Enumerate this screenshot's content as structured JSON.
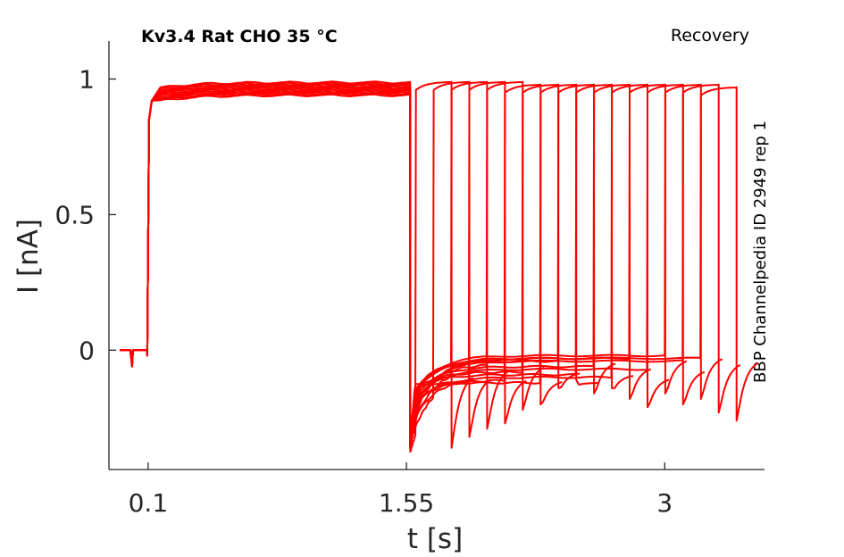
{
  "chart_data": {
    "type": "line",
    "title": "Kv3.4  Rat  CHO  35 °C",
    "protocol_label": "Recovery",
    "side_label": "BBP Channelpedia ID 2949 rep 1",
    "xlabel": "t [s]",
    "ylabel": "I [nA]",
    "xlim": [
      -0.12,
      3.56
    ],
    "ylim": [
      -0.44,
      1.14
    ],
    "x_ticks": [
      {
        "value": 0.1,
        "label": "0.1"
      },
      {
        "value": 1.55,
        "label": "1.55"
      },
      {
        "value": 3,
        "label": "3"
      }
    ],
    "y_ticks": [
      {
        "value": 0,
        "label": "0"
      },
      {
        "value": 0.5,
        "label": "0.5"
      },
      {
        "value": 1,
        "label": "1"
      }
    ],
    "grid": false,
    "color": "#ff0000",
    "prepulse": {
      "start": 0.1,
      "end": 1.58,
      "tail_start": -0.3,
      "peak_range": [
        0.94,
        0.99
      ],
      "baseline_start": -0.06
    },
    "sweeps": [
      {
        "test_pulse_time": 1.6,
        "trough": -0.38,
        "plateau": -0.08,
        "end_value": 0.99
      },
      {
        "test_pulse_time": 1.7,
        "trough": -0.34,
        "plateau": -0.09,
        "end_value": 0.99
      },
      {
        "test_pulse_time": 1.8,
        "trough": -0.31,
        "plateau": -0.06,
        "end_value": 0.99
      },
      {
        "test_pulse_time": 1.9,
        "trough": -0.29,
        "plateau": -0.1,
        "end_value": 0.99
      },
      {
        "test_pulse_time": 2.0,
        "trough": -0.24,
        "plateau": -0.05,
        "end_value": 0.99
      },
      {
        "test_pulse_time": 2.1,
        "trough": -0.22,
        "plateau": -0.11,
        "end_value": 0.98
      },
      {
        "test_pulse_time": 2.2,
        "trough": -0.16,
        "plateau": -0.08,
        "end_value": 0.98
      },
      {
        "test_pulse_time": 2.3,
        "trough": -0.13,
        "plateau": -0.12,
        "end_value": 0.98
      },
      {
        "test_pulse_time": 2.4,
        "trough": -0.18,
        "plateau": -0.04,
        "end_value": 0.98
      },
      {
        "test_pulse_time": 2.5,
        "trough": -0.16,
        "plateau": -0.09,
        "end_value": 0.98
      },
      {
        "test_pulse_time": 2.6,
        "trough": -0.2,
        "plateau": -0.06,
        "end_value": 0.98
      },
      {
        "test_pulse_time": 2.7,
        "trough": -0.23,
        "plateau": -0.1,
        "end_value": 0.98
      },
      {
        "test_pulse_time": 2.8,
        "trough": -0.18,
        "plateau": -0.03,
        "end_value": 0.98
      },
      {
        "test_pulse_time": 2.9,
        "trough": -0.22,
        "plateau": -0.07,
        "end_value": 0.98
      },
      {
        "test_pulse_time": 3.0,
        "trough": -0.2,
        "plateau": -0.02,
        "end_value": 0.98
      },
      {
        "test_pulse_time": 3.1,
        "trough": -0.25,
        "plateau": -0.04,
        "end_value": 0.98
      },
      {
        "test_pulse_time": 3.2,
        "trough": -0.28,
        "plateau": -0.03,
        "end_value": 0.97
      }
    ]
  }
}
